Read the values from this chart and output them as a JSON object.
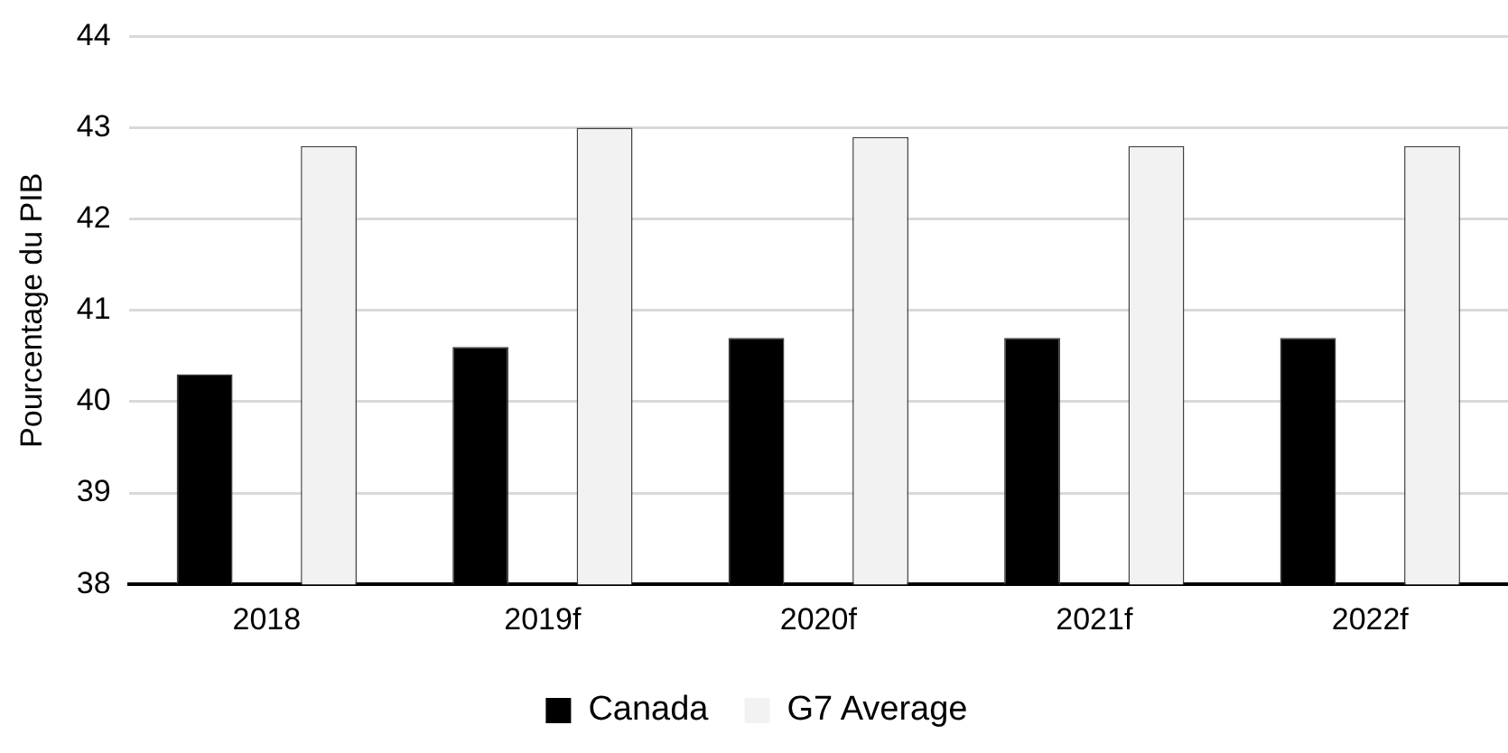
{
  "chart_data": {
    "type": "bar",
    "ylabel": "Pourcentage du PIB",
    "categories": [
      "2018",
      "2019f",
      "2020f",
      "2021f",
      "2022f"
    ],
    "series": [
      {
        "name": "Canada",
        "color": "#000000",
        "values": [
          40.3,
          40.6,
          40.7,
          40.7,
          40.7
        ]
      },
      {
        "name": "G7 Average",
        "color": "#f2f2f2",
        "values": [
          42.8,
          43.0,
          42.9,
          42.8,
          42.8
        ]
      }
    ],
    "ylim": [
      38,
      44
    ],
    "yticks": [
      38,
      39,
      40,
      41,
      42,
      43,
      44
    ],
    "grid": "y",
    "legend": "bottom"
  }
}
